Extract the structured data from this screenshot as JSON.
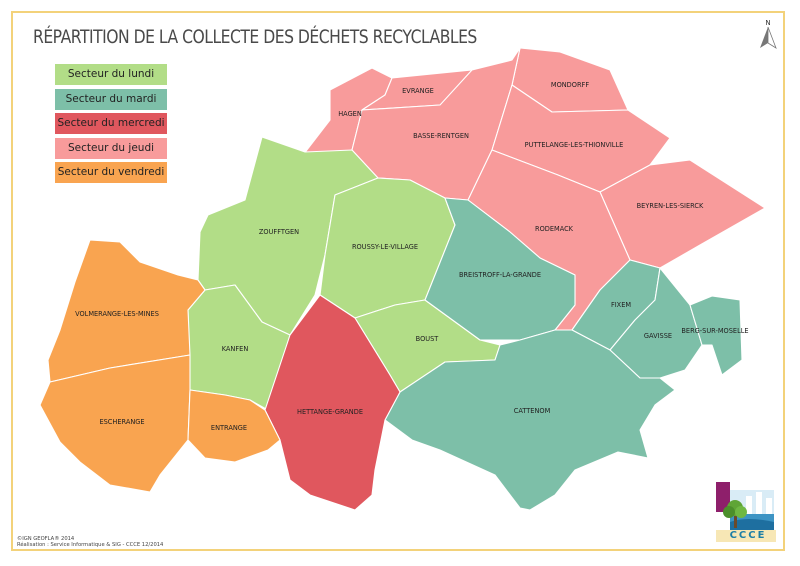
{
  "title": "RÉPARTITION DE LA COLLECTE DES DÉCHETS RECYCLABLES",
  "north_label": "N",
  "north_arrow_icon": "north-arrow-icon",
  "colors": {
    "lundi": "#b2dd87",
    "mardi": "#7dbfa8",
    "mercredi": "#e0575e",
    "jeudi": "#f89b9b",
    "vendredi": "#f9a450",
    "frame": "#f3d27a"
  },
  "legend": [
    {
      "label": "Secteur du lundi",
      "color": "#b2dd87"
    },
    {
      "label": "Secteur du mardi",
      "color": "#7dbfa8"
    },
    {
      "label": "Secteur du mercredi",
      "color": "#e0575e"
    },
    {
      "label": "Secteur du jeudi",
      "color": "#f89b9b"
    },
    {
      "label": "Secteur du vendredi",
      "color": "#f9a450"
    }
  ],
  "communes": [
    {
      "name": "HAGEN",
      "sector": "jeudi"
    },
    {
      "name": "EVRANGE",
      "sector": "jeudi"
    },
    {
      "name": "MONDORFF",
      "sector": "jeudi"
    },
    {
      "name": "BASSE-RENTGEN",
      "sector": "jeudi"
    },
    {
      "name": "PUTTELANGE-LES-THIONVILLE",
      "sector": "jeudi"
    },
    {
      "name": "BEYREN-LES-SIERCK",
      "sector": "jeudi"
    },
    {
      "name": "RODEMACK",
      "sector": "jeudi"
    },
    {
      "name": "ZOUFFTGEN",
      "sector": "lundi"
    },
    {
      "name": "ROUSSY-LE-VILLAGE",
      "sector": "lundi"
    },
    {
      "name": "KANFEN",
      "sector": "lundi"
    },
    {
      "name": "BOUST",
      "sector": "lundi"
    },
    {
      "name": "BREISTROFF-LA-GRANDE",
      "sector": "mardi"
    },
    {
      "name": "FIXEM",
      "sector": "mardi"
    },
    {
      "name": "GAVISSE",
      "sector": "mardi"
    },
    {
      "name": "BERG-SUR-MOSELLE",
      "sector": "mardi"
    },
    {
      "name": "CATTENOM",
      "sector": "mardi"
    },
    {
      "name": "HETTANGE-GRANDE",
      "sector": "mercredi"
    },
    {
      "name": "VOLMERANGE-LES-MINES",
      "sector": "vendredi"
    },
    {
      "name": "ESCHERANGE",
      "sector": "vendredi"
    },
    {
      "name": "ENTRANGE",
      "sector": "vendredi"
    }
  ],
  "credits": {
    "line1": "©IGN GEOFLA® 2014",
    "line2": "Réalisation : Service Informatique & SIG - CCCE 12/2014"
  },
  "logo": {
    "text": "CCCE",
    "icon": "ccce-logo-icon"
  }
}
